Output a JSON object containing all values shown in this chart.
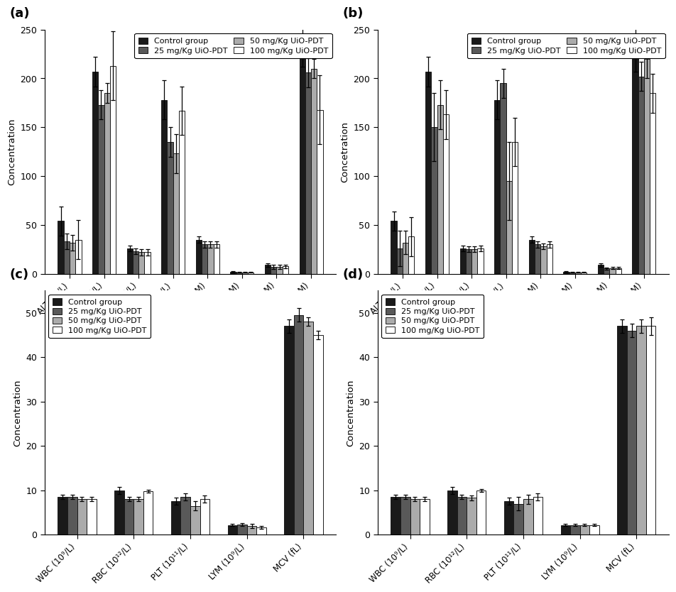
{
  "panel_a": {
    "title": "(a)",
    "ylabel": "Concentration",
    "categories": [
      "ALT (IU/L)",
      "AST (IU/L)",
      "ALB (IU/L)",
      "ALP (IU/L)",
      "CRE (μM)",
      "TBIL (μM)",
      "BUN (mM)",
      "URIC (μM)"
    ],
    "values": {
      "control": [
        54,
        207,
        26,
        178,
        35,
        2,
        9,
        232
      ],
      "25mg": [
        33,
        173,
        23,
        135,
        30,
        1.5,
        7,
        206
      ],
      "50mg": [
        32,
        185,
        22,
        123,
        30,
        1.5,
        7,
        210
      ],
      "100mg": [
        35,
        213,
        22,
        167,
        30,
        1.5,
        7.5,
        168
      ]
    },
    "errors": {
      "control": [
        15,
        15,
        3,
        20,
        3,
        0.5,
        2,
        20
      ],
      "25mg": [
        8,
        15,
        3,
        15,
        3,
        0.5,
        2,
        15
      ],
      "50mg": [
        8,
        10,
        3,
        20,
        3,
        0.5,
        2,
        10
      ],
      "100mg": [
        20,
        35,
        3,
        25,
        3,
        0.5,
        2,
        35
      ]
    }
  },
  "panel_b": {
    "title": "(b)",
    "ylabel": "Concetration",
    "categories": [
      "ALT (IU/L)",
      "AST (IU/L)",
      "ALB (IU/L)",
      "ALP (IU/L)",
      "CRE (μM)",
      "TBIL (μM)",
      "BUN (mM)",
      "URIC (μM)"
    ],
    "values": {
      "control": [
        54,
        207,
        26,
        178,
        35,
        2,
        9,
        232
      ],
      "25mg": [
        26,
        150,
        25,
        195,
        30,
        1.5,
        5.5,
        202
      ],
      "50mg": [
        32,
        173,
        25,
        95,
        28,
        1.5,
        6,
        220
      ],
      "100mg": [
        38,
        163,
        26,
        135,
        30,
        1.5,
        6,
        185
      ]
    },
    "errors": {
      "control": [
        10,
        15,
        3,
        20,
        3,
        0.5,
        2,
        25
      ],
      "25mg": [
        18,
        35,
        3,
        15,
        3,
        0.5,
        1,
        15
      ],
      "50mg": [
        12,
        25,
        3,
        40,
        3,
        0.5,
        1,
        20
      ],
      "100mg": [
        20,
        25,
        3,
        25,
        3,
        0.5,
        1,
        20
      ]
    }
  },
  "panel_c": {
    "title": "(c)",
    "ylabel": "Concentration",
    "categories": [
      "WBC (10⁹/L)",
      "RBC (10¹²/L)",
      "PLT (10¹¹/L)",
      "LYM (10⁹/L)",
      "MCV (fL)"
    ],
    "values": {
      "control": [
        8.5,
        10.0,
        7.5,
        2.2,
        47
      ],
      "25mg": [
        8.5,
        8.0,
        8.5,
        2.3,
        49.5
      ],
      "50mg": [
        8.0,
        8.0,
        6.5,
        2.0,
        48
      ],
      "100mg": [
        8.0,
        9.8,
        8.0,
        1.7,
        45
      ]
    },
    "errors": {
      "control": [
        0.5,
        0.8,
        0.8,
        0.3,
        1.5
      ],
      "25mg": [
        0.5,
        0.5,
        0.8,
        0.3,
        1.5
      ],
      "50mg": [
        0.5,
        0.5,
        1.0,
        0.5,
        1.0
      ],
      "100mg": [
        0.5,
        0.3,
        0.8,
        0.3,
        1.0
      ]
    }
  },
  "panel_d": {
    "title": "(d)",
    "ylabel": "Concentration",
    "categories": [
      "WBC (10⁹/L)",
      "RBC (10¹²/L)",
      "PLT (10¹¹/L)",
      "LYM (10⁹/L)",
      "MCV (fL)"
    ],
    "values": {
      "control": [
        8.5,
        10.0,
        7.5,
        2.2,
        47
      ],
      "25mg": [
        8.5,
        8.5,
        7.0,
        2.2,
        46
      ],
      "50mg": [
        8.0,
        8.3,
        8.0,
        2.2,
        47
      ],
      "100mg": [
        8.0,
        10.0,
        8.5,
        2.2,
        47
      ]
    },
    "errors": {
      "control": [
        0.5,
        0.8,
        0.8,
        0.3,
        1.5
      ],
      "25mg": [
        0.5,
        0.5,
        1.5,
        0.3,
        1.5
      ],
      "50mg": [
        0.5,
        0.5,
        1.0,
        0.3,
        1.5
      ],
      "100mg": [
        0.5,
        0.3,
        0.8,
        0.3,
        2.0
      ]
    }
  },
  "colors": {
    "control": "#1a1a1a",
    "25mg": "#595959",
    "50mg": "#ababab",
    "100mg": "#ffffff"
  },
  "legend_labels": [
    "Control group",
    "25 mg/Kg UiO-PDT",
    "50 mg/Kg UiO-PDT",
    "100 mg/Kg UiO-PDT"
  ],
  "bar_width": 0.17,
  "edgecolor": "#1a1a1a"
}
